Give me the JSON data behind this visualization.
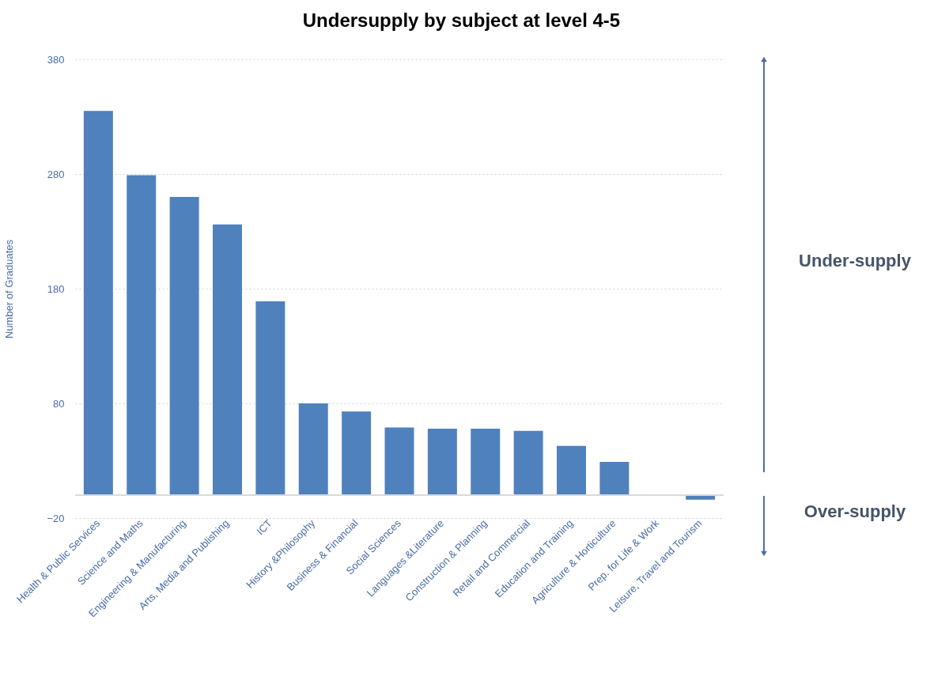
{
  "chart_data": {
    "type": "bar",
    "title": "Undersupply by subject at level 4-5",
    "ylabel": "Number of Graduates",
    "categories": [
      "Health & Public Services",
      "Science and Maths",
      "Engineering & Manufacturing",
      "Arts, Media and Publishing",
      "ICT",
      "History &Philosophy",
      "Business & Financial",
      "Social Sciences",
      "Languages &Literature",
      "Construction & Planning",
      "Retail and Commercial",
      "Education and Training",
      "Agriculture & Horticulture",
      "Prep. for Life & Work",
      "Leisure, Travel and Tourism"
    ],
    "values": [
      335,
      279,
      260,
      236,
      169,
      80,
      73,
      59,
      58,
      58,
      56,
      43,
      29,
      0,
      -4
    ],
    "color": "#4f81bd",
    "ylim": [
      -20,
      380
    ],
    "yticks": [
      -20,
      80,
      180,
      280,
      380
    ],
    "grid": "y",
    "ref_lines": [
      {
        "axis": "y",
        "value": 0,
        "color": "#d9d9d9"
      }
    ],
    "annotations": [
      "Under-supply",
      "Over-supply"
    ]
  }
}
